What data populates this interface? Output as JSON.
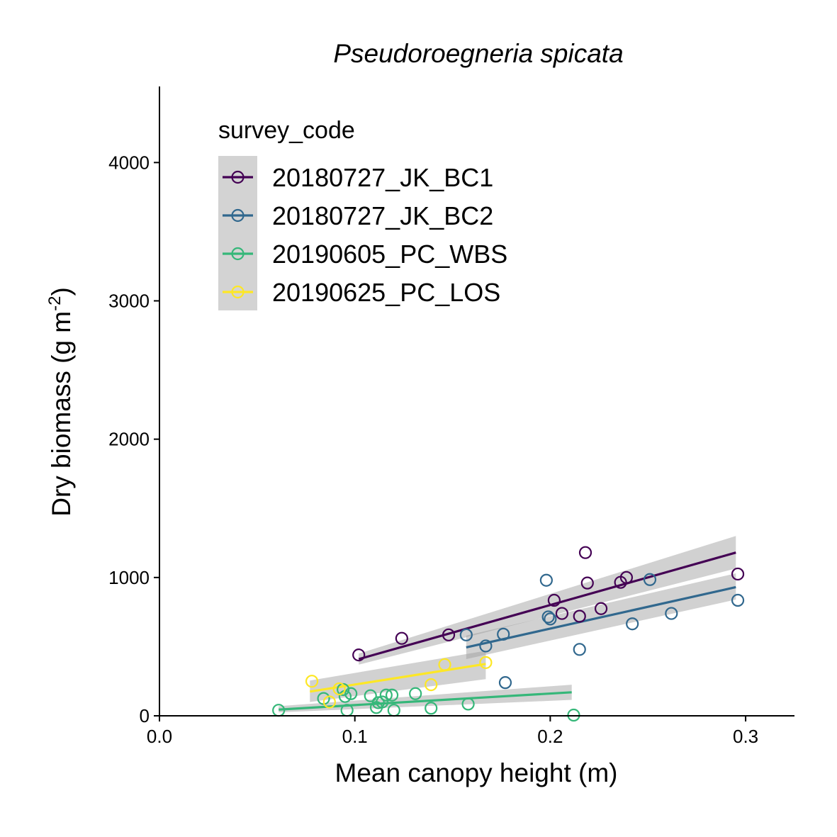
{
  "chart_data": {
    "type": "scatter",
    "title": "Pseudoroegneria spicata",
    "xlabel": "Mean canopy height (m)",
    "ylabel": "Dry biomass (g m",
    "ylabel_sup": "-2",
    "ylabel_close": ")",
    "xlim": [
      0.0,
      0.325
    ],
    "ylim": [
      0,
      4550
    ],
    "xticks": [
      0.0,
      0.1,
      0.2,
      0.3
    ],
    "xtick_labels": [
      "0.0",
      "0.1",
      "0.2",
      "0.3"
    ],
    "yticks": [
      0,
      1000,
      2000,
      3000,
      4000
    ],
    "ytick_labels": [
      "0",
      "1000",
      "2000",
      "3000",
      "4000"
    ],
    "grid": false,
    "legend": {
      "title": "survey_code",
      "position": "top-left"
    },
    "series": [
      {
        "name": "20180727_JK_BC1",
        "color": "#440154",
        "points": [
          [
            0.102,
            440
          ],
          [
            0.124,
            560
          ],
          [
            0.148,
            585
          ],
          [
            0.202,
            835
          ],
          [
            0.206,
            740
          ],
          [
            0.215,
            720
          ],
          [
            0.218,
            1180
          ],
          [
            0.219,
            960
          ],
          [
            0.226,
            775
          ],
          [
            0.236,
            965
          ],
          [
            0.239,
            1000
          ],
          [
            0.296,
            1025
          ]
        ],
        "fit": {
          "x": [
            0.102,
            0.295
          ],
          "y": [
            410,
            1180
          ],
          "ci_low": [
            370,
            1065
          ],
          "ci_high": [
            450,
            1300
          ]
        }
      },
      {
        "name": "20180727_JK_BC2",
        "color": "#31688E",
        "points": [
          [
            0.157,
            585
          ],
          [
            0.167,
            505
          ],
          [
            0.176,
            590
          ],
          [
            0.177,
            240
          ],
          [
            0.198,
            980
          ],
          [
            0.199,
            715
          ],
          [
            0.2,
            700
          ],
          [
            0.215,
            480
          ],
          [
            0.242,
            665
          ],
          [
            0.251,
            985
          ],
          [
            0.262,
            740
          ],
          [
            0.296,
            835
          ]
        ],
        "fit": {
          "x": [
            0.157,
            0.295
          ],
          "y": [
            495,
            930
          ],
          "ci_low": [
            410,
            840
          ],
          "ci_high": [
            580,
            1030
          ]
        }
      },
      {
        "name": "20190605_PC_WBS",
        "color": "#35B779",
        "points": [
          [
            0.061,
            40
          ],
          [
            0.084,
            125
          ],
          [
            0.094,
            190
          ],
          [
            0.095,
            140
          ],
          [
            0.098,
            160
          ],
          [
            0.096,
            40
          ],
          [
            0.108,
            145
          ],
          [
            0.111,
            60
          ],
          [
            0.112,
            95
          ],
          [
            0.114,
            100
          ],
          [
            0.116,
            150
          ],
          [
            0.119,
            150
          ],
          [
            0.12,
            40
          ],
          [
            0.131,
            160
          ],
          [
            0.139,
            55
          ],
          [
            0.158,
            85
          ],
          [
            0.212,
            5
          ]
        ],
        "fit": {
          "x": [
            0.061,
            0.211
          ],
          "y": [
            45,
            170
          ],
          "ci_low": [
            25,
            115
          ],
          "ci_high": [
            70,
            225
          ]
        }
      },
      {
        "name": "20190625_PC_LOS",
        "color": "#FDE725",
        "points": [
          [
            0.078,
            250
          ],
          [
            0.087,
            100
          ],
          [
            0.092,
            195
          ],
          [
            0.139,
            225
          ],
          [
            0.146,
            370
          ],
          [
            0.167,
            385
          ]
        ],
        "fit": {
          "x": [
            0.077,
            0.167
          ],
          "y": [
            175,
            375
          ],
          "ci_low": [
            100,
            265
          ],
          "ci_high": [
            255,
            470
          ]
        }
      }
    ]
  }
}
